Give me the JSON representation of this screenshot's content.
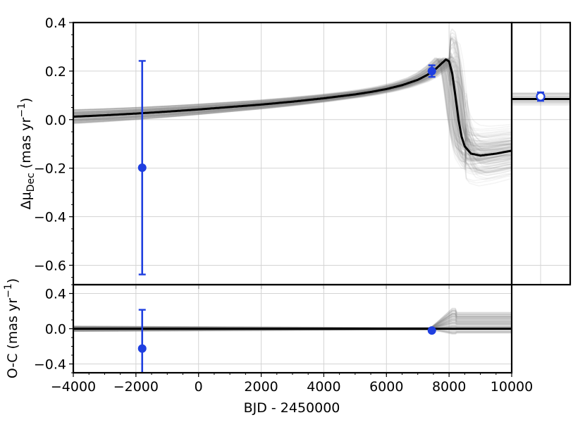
{
  "chart_data": {
    "type": "line",
    "xlabel": "BJD - 2450000",
    "xlim": [
      -4000,
      10000
    ],
    "xticks": [
      "−4000",
      "−2000",
      "0",
      "2000",
      "4000",
      "6000",
      "8000",
      "10000"
    ],
    "xtick_values": [
      -4000,
      -2000,
      0,
      2000,
      4000,
      6000,
      8000,
      10000
    ],
    "grid": true,
    "colors": {
      "data": "#1f3fe0",
      "model": "#000000",
      "samples": "#8a8a8a"
    },
    "panels": [
      {
        "name": "main",
        "ylabel": {
          "main": "Δμ",
          "sub": "Dec",
          "units_pre": " (mas yr",
          "units_sup": "−1",
          "units_post": ")"
        },
        "ylim": [
          -0.68,
          0.4
        ],
        "yticks": [
          "−0.6",
          "−0.4",
          "−0.2",
          "0.0",
          "0.2",
          "0.4"
        ],
        "ytick_values": [
          -0.6,
          -0.4,
          -0.2,
          0.0,
          0.2,
          0.4
        ],
        "best_fit": {
          "x": [
            -4000,
            -3000,
            -2000,
            -1000,
            0,
            1000,
            2000,
            3000,
            4000,
            5000,
            5500,
            6000,
            6500,
            7000,
            7300,
            7600,
            7800,
            7900,
            8000,
            8100,
            8200,
            8300,
            8400,
            8500,
            8700,
            9000,
            9500,
            10000
          ],
          "y": [
            0.012,
            0.018,
            0.025,
            0.033,
            0.042,
            0.052,
            0.062,
            0.074,
            0.088,
            0.104,
            0.114,
            0.126,
            0.142,
            0.164,
            0.184,
            0.212,
            0.236,
            0.248,
            0.24,
            0.19,
            0.1,
            0.0,
            -0.07,
            -0.11,
            -0.14,
            -0.148,
            -0.14,
            -0.128
          ]
        },
        "points": [
          {
            "x": -1800,
            "y": -0.198,
            "err": 0.44
          },
          {
            "x": 7450,
            "y": 0.2,
            "err": 0.024
          }
        ]
      },
      {
        "name": "side",
        "ylim": [
          -0.68,
          0.4
        ],
        "best_fit_level": 0.085,
        "points": [
          {
            "y": 0.095,
            "err": 0.018,
            "open": true
          }
        ]
      },
      {
        "name": "residuals",
        "ylabel": {
          "main": "O-C",
          "sub": "",
          "units_pre": " (mas yr",
          "units_sup": "−1",
          "units_post": ")"
        },
        "ylim": [
          -0.5,
          0.5
        ],
        "yticks": [
          "−0.4",
          "0.0",
          "0.4"
        ],
        "ytick_values": [
          -0.4,
          0.0,
          0.4
        ],
        "best_fit": {
          "x": [
            -4000,
            10000
          ],
          "y": [
            0.0,
            0.0
          ]
        },
        "points": [
          {
            "x": -1800,
            "y": -0.225,
            "err": 0.44
          },
          {
            "x": 7450,
            "y": -0.02,
            "err": 0.015
          }
        ]
      }
    ]
  }
}
